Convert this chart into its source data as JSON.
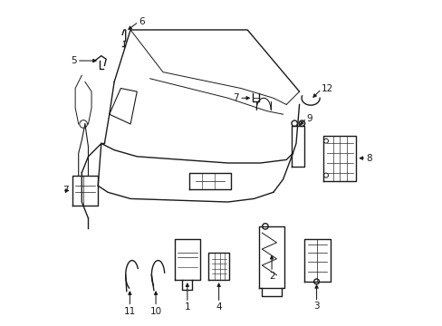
{
  "bg_color": "#ffffff",
  "line_color": "#1a1a1a",
  "label_fontsize": 7.5
}
